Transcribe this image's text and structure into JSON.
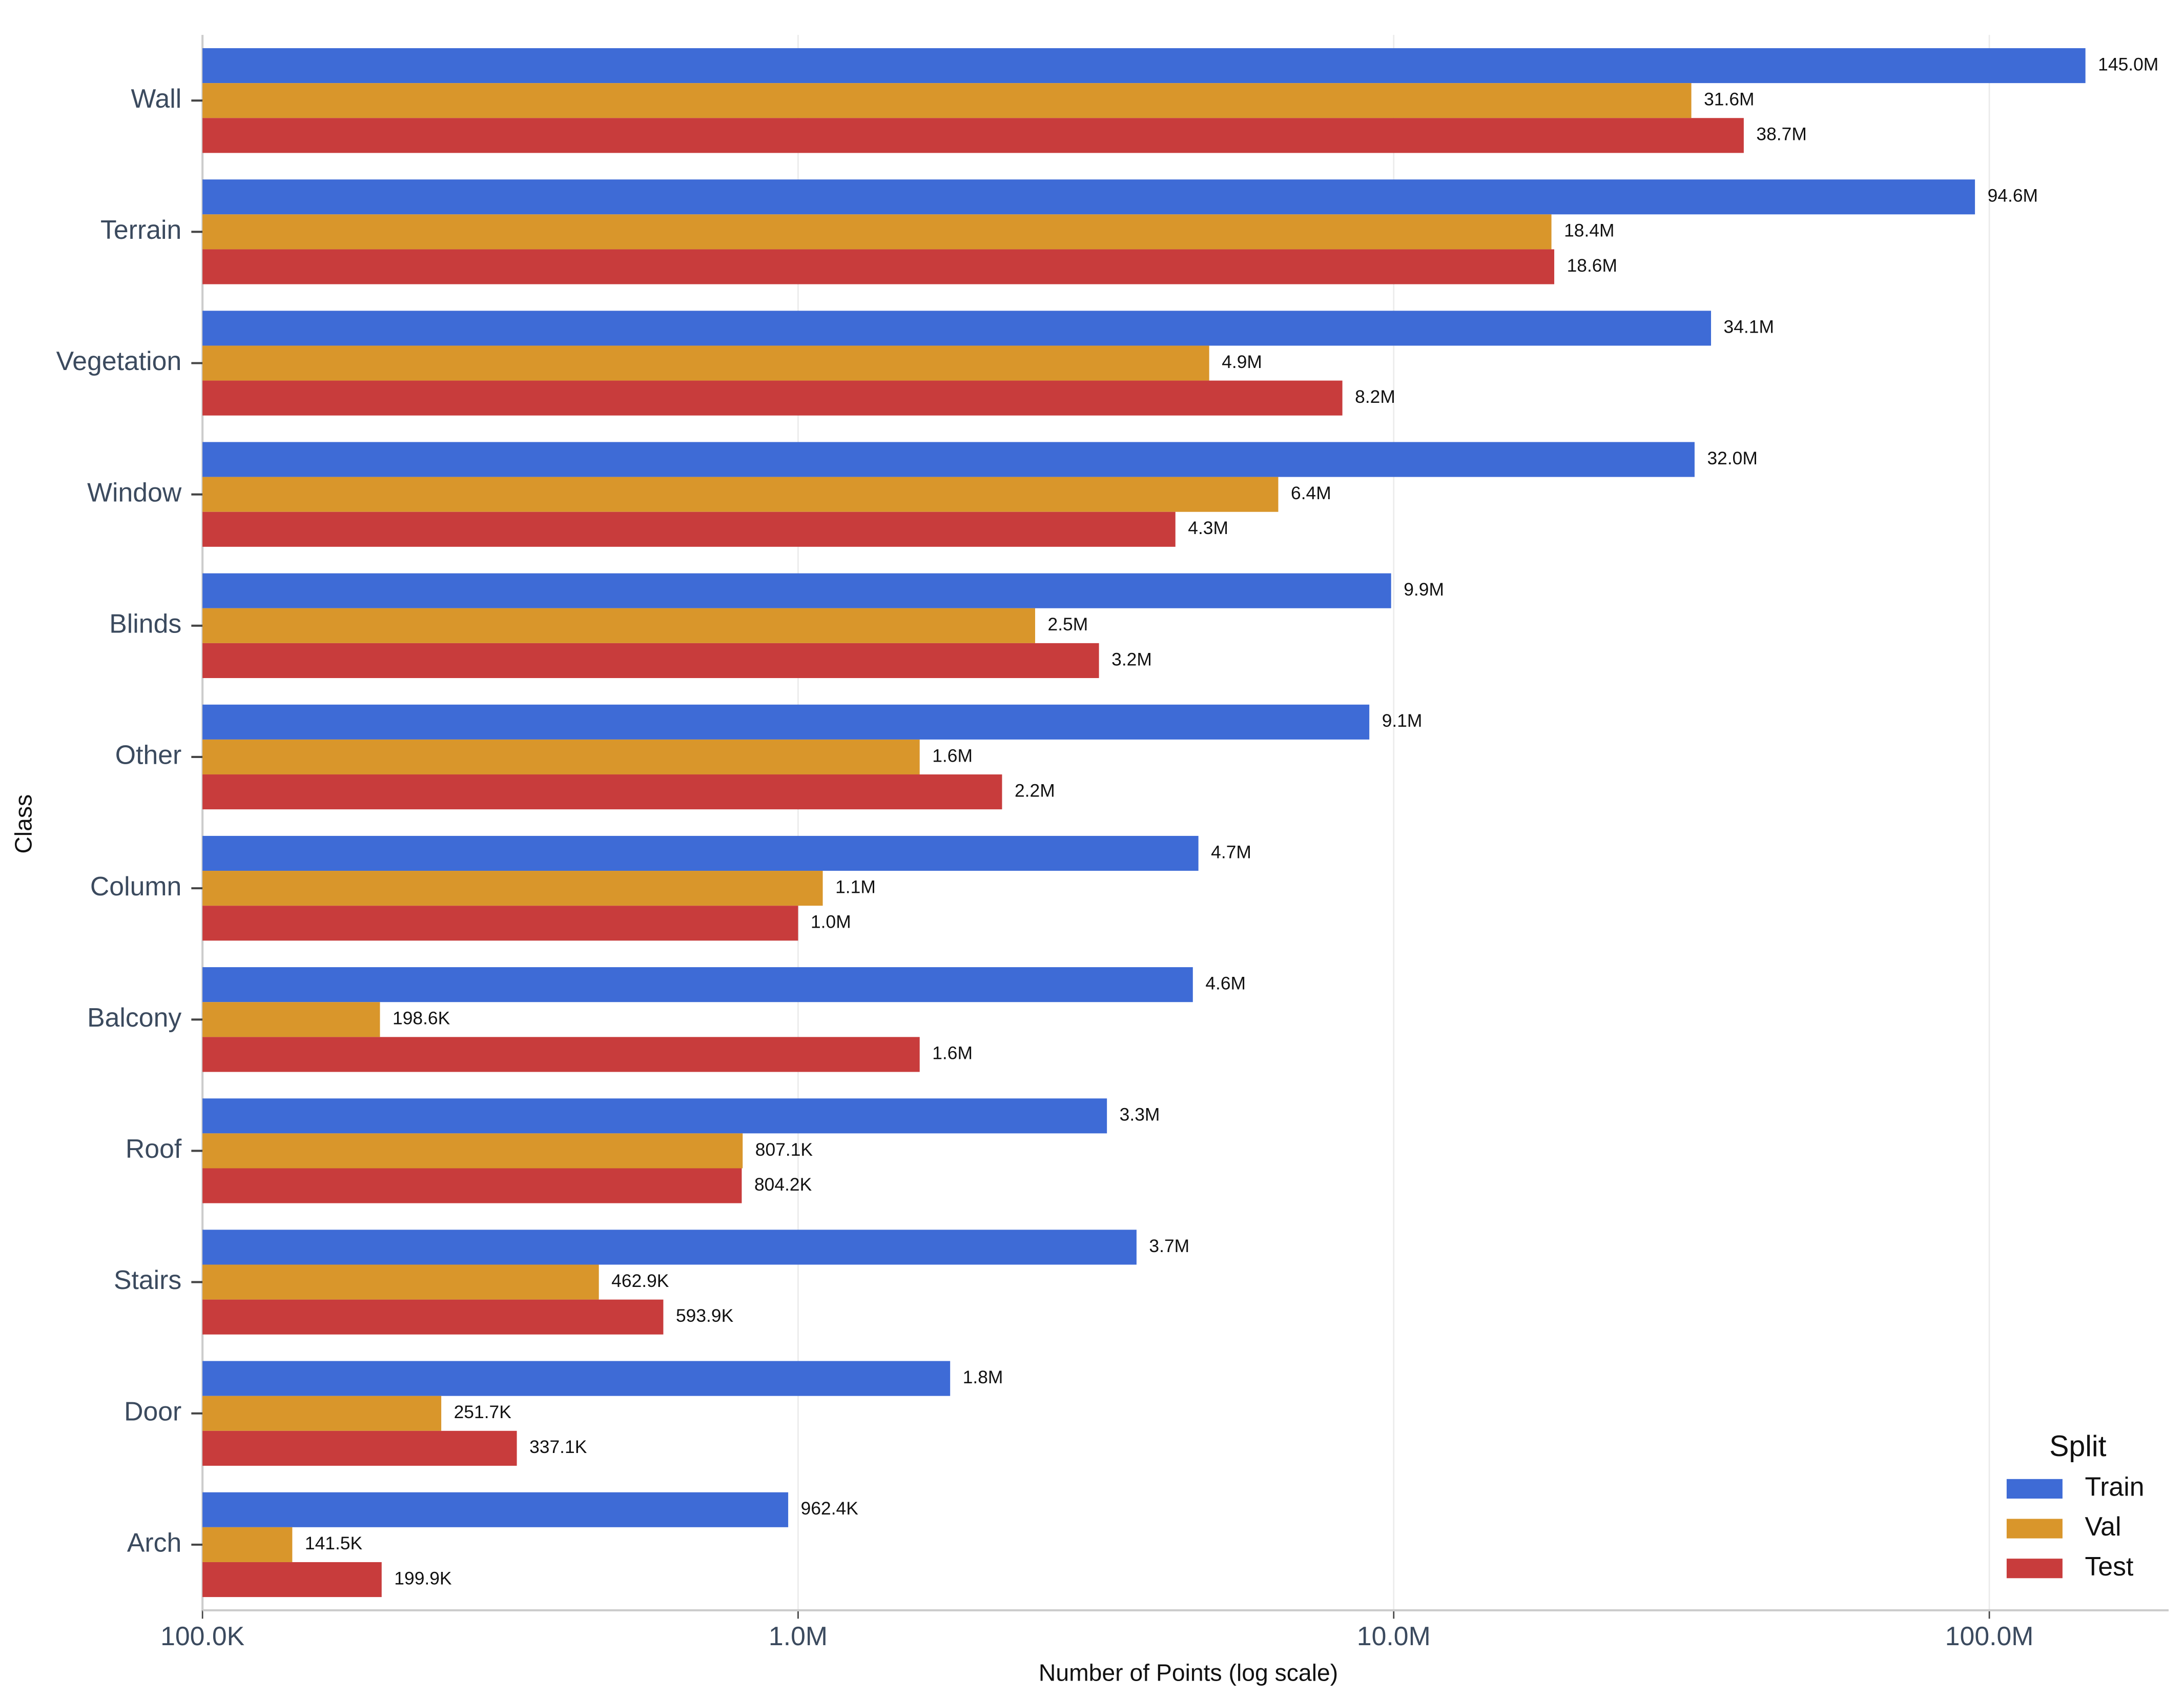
{
  "chart_data": {
    "type": "bar",
    "orientation": "horizontal",
    "xlabel": "Number of Points (log scale)",
    "ylabel": "Class",
    "categories": [
      "Wall",
      "Terrain",
      "Vegetation",
      "Window",
      "Blinds",
      "Other",
      "Column",
      "Balcony",
      "Roof",
      "Stairs",
      "Door",
      "Arch"
    ],
    "series": [
      {
        "name": "Train",
        "color": "#3e6bd6",
        "values": [
          145000000,
          94600000,
          34100000,
          32000000,
          9900000,
          9100000,
          4700000,
          4600000,
          3300000,
          3700000,
          1800000,
          962400
        ],
        "value_labels": [
          "145.0M",
          "94.6M",
          "34.1M",
          "32.0M",
          "9.9M",
          "9.1M",
          "4.7M",
          "4.6M",
          "3.3M",
          "3.7M",
          "1.8M",
          "962.4K"
        ]
      },
      {
        "name": "Val",
        "color": "#d9962b",
        "values": [
          31600000,
          18400000,
          4900000,
          6400000,
          2500000,
          1600000,
          1100000,
          198600,
          807100,
          462900,
          251700,
          141500
        ],
        "value_labels": [
          "31.6M",
          "18.4M",
          "4.9M",
          "6.4M",
          "2.5M",
          "1.6M",
          "1.1M",
          "198.6K",
          "807.1K",
          "462.9K",
          "251.7K",
          "141.5K"
        ]
      },
      {
        "name": "Test",
        "color": "#c83c3c",
        "values": [
          38700000,
          18600000,
          8200000,
          4300000,
          3200000,
          2200000,
          1000000,
          1600000,
          804200,
          593900,
          337100,
          199900
        ],
        "value_labels": [
          "38.7M",
          "18.6M",
          "8.2M",
          "4.3M",
          "3.2M",
          "2.2M",
          "1.0M",
          "1.6M",
          "804.2K",
          "593.9K",
          "337.1K",
          "199.9K"
        ]
      }
    ],
    "xscale": "log",
    "xlim": [
      100000,
      200000000
    ],
    "xticks": [
      {
        "value": 100000,
        "label": "100.0K"
      },
      {
        "value": 1000000,
        "label": "1.0M"
      },
      {
        "value": 10000000,
        "label": "10.0M"
      },
      {
        "value": 100000000,
        "label": "100.0M"
      }
    ],
    "grid": true,
    "legend_title": "Split",
    "legend_position": "lower right"
  }
}
